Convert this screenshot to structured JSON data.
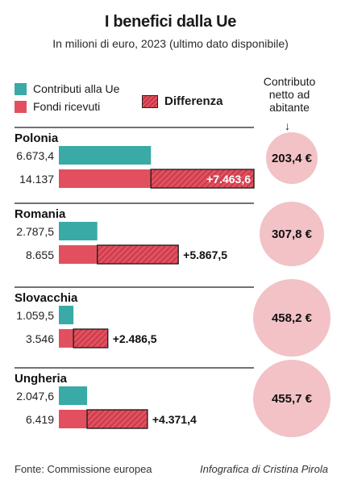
{
  "title": "I benefici dalla Ue",
  "subtitle": "In milioni di euro, 2023 (ultimo dato disponibile)",
  "legend": {
    "contributi": "Contributi alla Ue",
    "fondi": "Fondi ricevuti",
    "differenza": "Differenza"
  },
  "netto_header": "Contributo netto ad abitante",
  "netto_arrow": "↓",
  "footer": {
    "source": "Fonte: Commissione europea",
    "credit": "Infografica di Cristina Pirola"
  },
  "colors": {
    "contributi": "#3aaaa6",
    "fondi": "#e2505f",
    "differenza_hatch": "#b8323f",
    "circle": "#f2c2c6",
    "divider": "#444444"
  },
  "chart_data": {
    "type": "bar",
    "orientation": "horizontal",
    "unit": "milioni di euro",
    "xlim": [
      0,
      14137
    ],
    "countries": [
      {
        "name": "Polonia",
        "contributi": 6673.4,
        "contributi_label": "6.673,4",
        "fondi": 14137,
        "fondi_label": "14.137",
        "differenza": 7463.6,
        "differenza_label": "+7.463,6",
        "netto_ab": 203.4,
        "netto_label": "203,4 €"
      },
      {
        "name": "Romania",
        "contributi": 2787.5,
        "contributi_label": "2.787,5",
        "fondi": 8655,
        "fondi_label": "8.655",
        "differenza": 5867.5,
        "differenza_label": "+5.867,5",
        "netto_ab": 307.8,
        "netto_label": "307,8 €"
      },
      {
        "name": "Slovacchia",
        "contributi": 1059.5,
        "contributi_label": "1.059,5",
        "fondi": 3546,
        "fondi_label": "3.546",
        "differenza": 2486.5,
        "differenza_label": "+2.486,5",
        "netto_ab": 458.2,
        "netto_label": "458,2 €"
      },
      {
        "name": "Ungheria",
        "contributi": 2047.6,
        "contributi_label": "2.047,6",
        "fondi": 6419,
        "fondi_label": "6.419",
        "differenza": 4371.4,
        "differenza_label": "+4.371,4",
        "netto_ab": 455.7,
        "netto_label": "455,7 €"
      }
    ]
  }
}
